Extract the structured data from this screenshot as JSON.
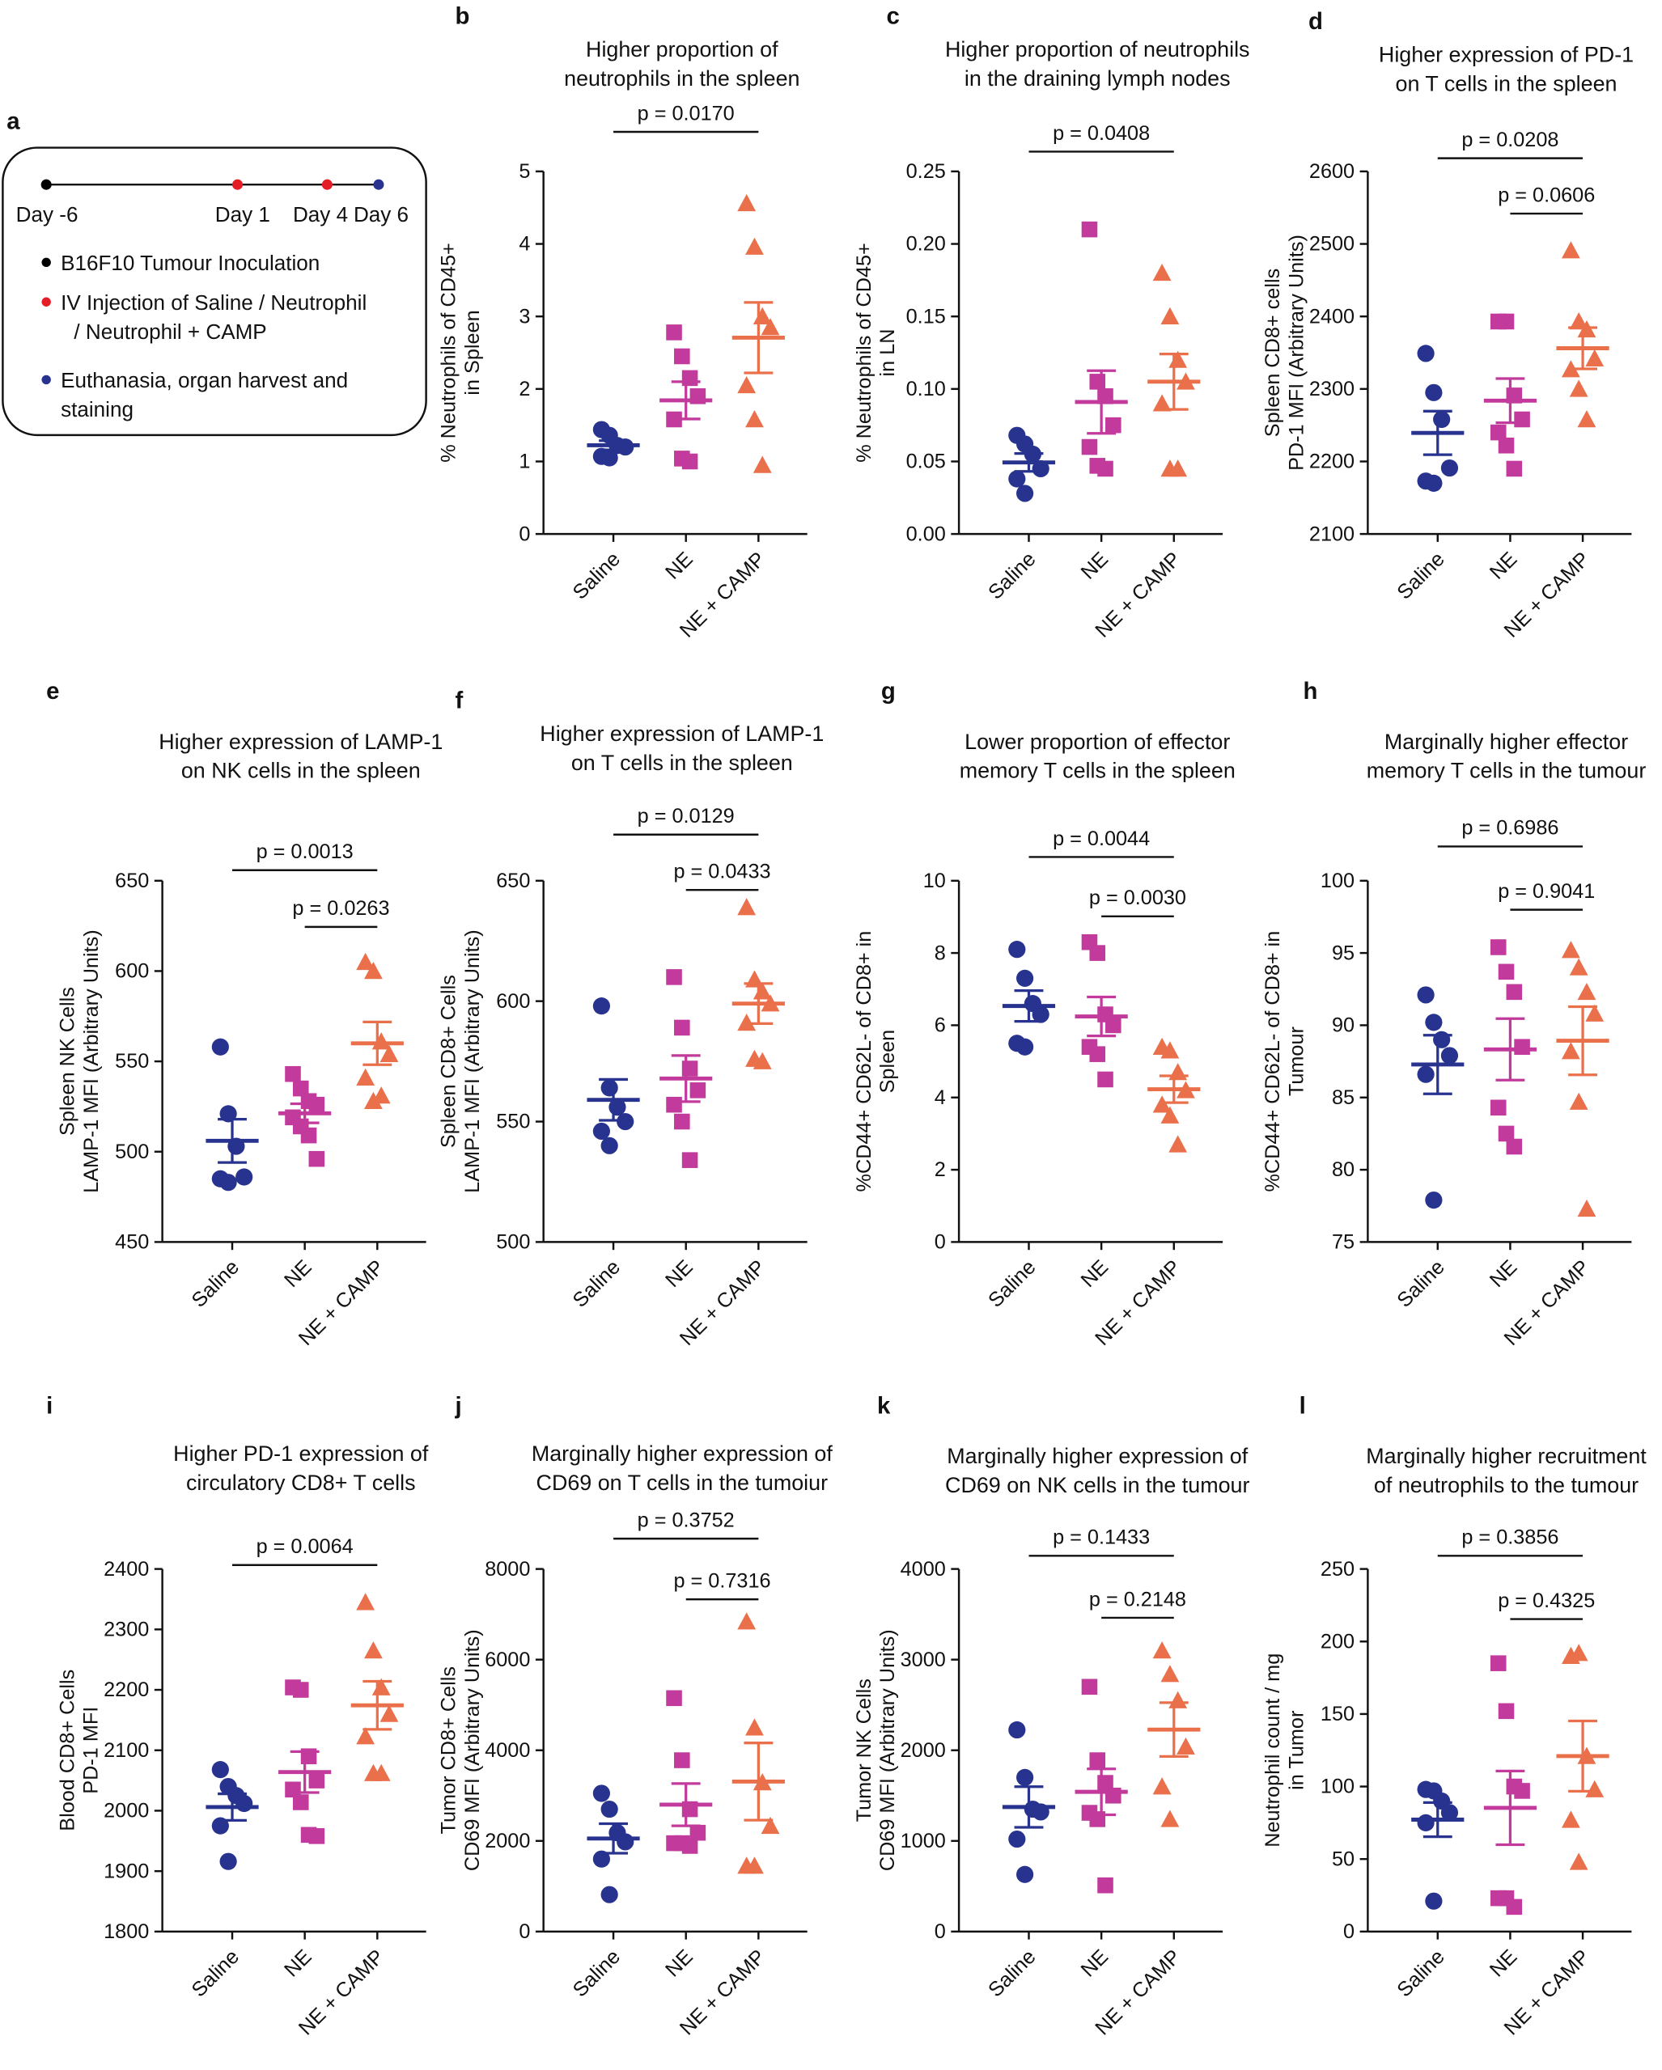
{
  "colors": {
    "Saline": "#27338f",
    "NE": "#c13a9c",
    "NE + CAMP": "#ea704b"
  },
  "panel_a": {
    "letter": "a",
    "days": [
      "Day -6",
      "Day 1",
      "Day 4",
      "Day 6"
    ],
    "legend": [
      {
        "color": "#000000",
        "lines": [
          "B16F10 Tumour Inoculation"
        ]
      },
      {
        "color": "#e41e26",
        "lines": [
          "IV Injection of Saline / Neutrophil",
          "/ Neutrophil + CAMP"
        ]
      },
      {
        "color": "#27338f",
        "lines": [
          "Euthanasia, organ harvest and",
          "staining"
        ]
      }
    ]
  },
  "chart_data": [
    {
      "letter": "b",
      "type": "scatter",
      "title": [
        "Higher proportion of",
        "neutrophils in the spleen"
      ],
      "ylabel": [
        "% Neutrophils of CD45+",
        "in Spleen"
      ],
      "ylim": [
        0,
        5
      ],
      "yticks": [
        "0",
        "1",
        "2",
        "3",
        "4",
        "5"
      ],
      "categories": [
        "Saline",
        "NE",
        "NE + CAMP"
      ],
      "series": [
        {
          "name": "Saline",
          "marker": "circle",
          "values": [
            1.44,
            1.36,
            1.22,
            1.2,
            1.07,
            1.05
          ]
        },
        {
          "name": "NE",
          "marker": "square",
          "values": [
            2.78,
            2.45,
            2.15,
            1.9,
            1.58,
            1.04,
            1.0
          ]
        },
        {
          "name": "NE + CAMP",
          "marker": "triangle",
          "values": [
            4.56,
            3.96,
            3.0,
            2.85,
            2.05,
            1.58,
            0.95
          ]
        }
      ],
      "pvalues": [
        {
          "text": "p = 0.0170",
          "from": "Saline",
          "to": "NE + CAMP"
        }
      ]
    },
    {
      "letter": "c",
      "type": "scatter",
      "title": [
        "Higher proportion of neutrophils",
        "in the draining lymph nodes"
      ],
      "ylabel": [
        "% Neutrophils of CD45+",
        "in LN"
      ],
      "ylim": [
        0,
        0.25
      ],
      "yticks": [
        "0.00",
        "0.05",
        "0.10",
        "0.15",
        "0.20",
        "0.25"
      ],
      "categories": [
        "Saline",
        "NE",
        "NE + CAMP"
      ],
      "series": [
        {
          "name": "Saline",
          "marker": "circle",
          "values": [
            0.068,
            0.062,
            0.055,
            0.045,
            0.038,
            0.028
          ]
        },
        {
          "name": "NE",
          "marker": "square",
          "values": [
            0.21,
            0.105,
            0.095,
            0.075,
            0.06,
            0.047,
            0.045
          ]
        },
        {
          "name": "NE + CAMP",
          "marker": "triangle",
          "values": [
            0.18,
            0.15,
            0.12,
            0.105,
            0.09,
            0.045,
            0.045
          ]
        }
      ],
      "pvalues": [
        {
          "text": "p = 0.0408",
          "from": "Saline",
          "to": "NE + CAMP"
        }
      ]
    },
    {
      "letter": "d",
      "type": "scatter",
      "title": [
        "Higher expression of PD-1",
        "on T cells in the spleen"
      ],
      "ylabel": [
        "Spleen CD8+ cells",
        "PD-1 MFI (Arbitrary Units)"
      ],
      "ylim": [
        2100,
        2600
      ],
      "yticks": [
        "2100",
        "2200",
        "2300",
        "2400",
        "2500",
        "2600"
      ],
      "categories": [
        "Saline",
        "NE",
        "NE + CAMP"
      ],
      "series": [
        {
          "name": "Saline",
          "marker": "circle",
          "values": [
            2349,
            2295,
            2258,
            2191,
            2173,
            2170
          ]
        },
        {
          "name": "NE",
          "marker": "square",
          "values": [
            2393,
            2393,
            2291,
            2258,
            2240,
            2222,
            2190
          ]
        },
        {
          "name": "NE + CAMP",
          "marker": "triangle",
          "values": [
            2491,
            2393,
            2382,
            2342,
            2327,
            2300,
            2258
          ]
        }
      ],
      "pvalues": [
        {
          "text": "p = 0.0208",
          "from": "Saline",
          "to": "NE + CAMP"
        },
        {
          "text": "p = 0.0606",
          "from": "NE",
          "to": "NE + CAMP"
        }
      ]
    },
    {
      "letter": "e",
      "type": "scatter",
      "title": [
        "Higher expression of LAMP-1",
        "on NK cells in the spleen"
      ],
      "ylabel": [
        "Spleen NK Cells",
        "LAMP-1 MFI (Arbitrary Units)"
      ],
      "ylim": [
        450,
        650
      ],
      "yticks": [
        "450",
        "500",
        "550",
        "600",
        "650"
      ],
      "categories": [
        "Saline",
        "NE",
        "NE + CAMP"
      ],
      "series": [
        {
          "name": "Saline",
          "marker": "circle",
          "values": [
            558,
            521,
            503,
            486,
            485,
            483
          ]
        },
        {
          "name": "NE",
          "marker": "square",
          "values": [
            543,
            535,
            528,
            526,
            519,
            514,
            509,
            496
          ]
        },
        {
          "name": "NE + CAMP",
          "marker": "triangle",
          "values": [
            605,
            600,
            561,
            554,
            541,
            528,
            531
          ]
        }
      ],
      "pvalues": [
        {
          "text": "p = 0.0013",
          "from": "Saline",
          "to": "NE + CAMP"
        },
        {
          "text": "p = 0.0263",
          "from": "NE",
          "to": "NE + CAMP"
        }
      ]
    },
    {
      "letter": "f",
      "type": "scatter",
      "title": [
        "Higher expression of LAMP-1",
        "on T cells in the spleen"
      ],
      "ylabel": [
        "Spleen CD8+ Cells",
        "LAMP-1 MFI (Arbitrary Units)"
      ],
      "ylim": [
        500,
        650
      ],
      "yticks": [
        "500",
        "550",
        "600",
        "650"
      ],
      "categories": [
        "Saline",
        "NE",
        "NE + CAMP"
      ],
      "series": [
        {
          "name": "Saline",
          "marker": "circle",
          "values": [
            598,
            564,
            556,
            550,
            546,
            540
          ]
        },
        {
          "name": "NE",
          "marker": "square",
          "values": [
            610,
            589,
            572,
            563,
            557,
            550,
            534
          ]
        },
        {
          "name": "NE + CAMP",
          "marker": "triangle",
          "values": [
            639,
            609,
            604,
            599,
            591,
            576,
            575
          ]
        }
      ],
      "pvalues": [
        {
          "text": "p = 0.0129",
          "from": "Saline",
          "to": "NE + CAMP"
        },
        {
          "text": "p = 0.0433",
          "from": "NE",
          "to": "NE + CAMP"
        }
      ]
    },
    {
      "letter": "g",
      "type": "scatter",
      "title": [
        "Lower proportion of effector",
        "memory T cells in the spleen"
      ],
      "ylabel": [
        "%CD44+ CD62L- of CD8+ in",
        "Spleen"
      ],
      "ylim": [
        0,
        10
      ],
      "yticks": [
        "0",
        "2",
        "4",
        "6",
        "8",
        "10"
      ],
      "categories": [
        "Saline",
        "NE",
        "NE + CAMP"
      ],
      "series": [
        {
          "name": "Saline",
          "marker": "circle",
          "values": [
            8.1,
            7.3,
            6.6,
            6.3,
            5.5,
            5.4
          ]
        },
        {
          "name": "NE",
          "marker": "square",
          "values": [
            8.3,
            8.0,
            6.3,
            6.0,
            5.4,
            5.2,
            4.5
          ]
        },
        {
          "name": "NE + CAMP",
          "marker": "triangle",
          "values": [
            5.4,
            5.3,
            4.7,
            4.2,
            3.8,
            3.5,
            2.7
          ]
        }
      ],
      "pvalues": [
        {
          "text": "p = 0.0044",
          "from": "Saline",
          "to": "NE + CAMP"
        },
        {
          "text": "p = 0.0030",
          "from": "NE",
          "to": "NE + CAMP"
        }
      ]
    },
    {
      "letter": "h",
      "type": "scatter",
      "title": [
        "Marginally higher effector",
        "memory T cells in the tumour"
      ],
      "ylabel": [
        "%CD44+ CD62L- of CD8+ in",
        "Tumour"
      ],
      "ylim": [
        75,
        100
      ],
      "yticks": [
        "75",
        "80",
        "85",
        "90",
        "95",
        "100"
      ],
      "categories": [
        "Saline",
        "NE",
        "NE + CAMP"
      ],
      "series": [
        {
          "name": "Saline",
          "marker": "circle",
          "values": [
            92.1,
            90.2,
            89.0,
            87.9,
            86.6,
            77.9
          ]
        },
        {
          "name": "NE",
          "marker": "square",
          "values": [
            95.4,
            93.7,
            92.3,
            88.5,
            84.3,
            82.5,
            81.6
          ]
        },
        {
          "name": "NE + CAMP",
          "marker": "triangle",
          "values": [
            95.2,
            94.0,
            92.3,
            90.8,
            88.2,
            84.7,
            77.3
          ]
        }
      ],
      "pvalues": [
        {
          "text": "p = 0.6986",
          "from": "Saline",
          "to": "NE + CAMP"
        },
        {
          "text": "p = 0.9041",
          "from": "NE",
          "to": "NE + CAMP"
        }
      ]
    },
    {
      "letter": "i",
      "type": "scatter",
      "title": [
        "Higher PD-1 expression of",
        "circulatory CD8+ T cells"
      ],
      "ylabel": [
        "Blood CD8+ Cells",
        "PD-1 MFI"
      ],
      "ylim": [
        1800,
        2400
      ],
      "yticks": [
        "1800",
        "1900",
        "2000",
        "2100",
        "2200",
        "2300",
        "2400"
      ],
      "categories": [
        "Saline",
        "NE",
        "NE + CAMP"
      ],
      "series": [
        {
          "name": "Saline",
          "marker": "circle",
          "values": [
            2068,
            2040,
            2025,
            2012,
            1975,
            1916
          ]
        },
        {
          "name": "NE",
          "marker": "square",
          "values": [
            2204,
            2200,
            2090,
            2050,
            2035,
            2014,
            1960,
            1958
          ]
        },
        {
          "name": "NE + CAMP",
          "marker": "triangle",
          "values": [
            2345,
            2265,
            2204,
            2160,
            2123,
            2062,
            2062
          ]
        }
      ],
      "pvalues": [
        {
          "text": "p = 0.0064",
          "from": "Saline",
          "to": "NE + CAMP"
        }
      ]
    },
    {
      "letter": "j",
      "type": "scatter",
      "title": [
        "Marginally higher expression of",
        "CD69 on T cells in the tumoiur"
      ],
      "ylabel": [
        "Tumor CD8+ Cells",
        "CD69 MFI (Arbitrary Units)"
      ],
      "ylim": [
        0,
        8000
      ],
      "yticks": [
        "0",
        "2000",
        "4000",
        "6000",
        "8000"
      ],
      "categories": [
        "Saline",
        "NE",
        "NE + CAMP"
      ],
      "series": [
        {
          "name": "Saline",
          "marker": "circle",
          "values": [
            3050,
            2700,
            2180,
            1980,
            1600,
            815
          ]
        },
        {
          "name": "NE",
          "marker": "square",
          "values": [
            5150,
            3780,
            2700,
            2180,
            1950,
            1950,
            1890
          ]
        },
        {
          "name": "NE + CAMP",
          "marker": "triangle",
          "values": [
            6840,
            4500,
            3290,
            2330,
            1450,
            1450
          ]
        }
      ],
      "pvalues": [
        {
          "text": "p = 0.3752",
          "from": "Saline",
          "to": "NE + CAMP"
        },
        {
          "text": "p = 0.7316",
          "from": "NE",
          "to": "NE + CAMP"
        }
      ]
    },
    {
      "letter": "k",
      "type": "scatter",
      "title": [
        "Marginally higher expression of",
        "CD69 on NK cells in the tumour"
      ],
      "ylabel": [
        "Tumor NK Cells",
        "CD69 MFI (Arbitrary Units)"
      ],
      "ylim": [
        0,
        4000
      ],
      "yticks": [
        "0",
        "1000",
        "2000",
        "3000",
        "4000"
      ],
      "categories": [
        "Saline",
        "NE",
        "NE + CAMP"
      ],
      "series": [
        {
          "name": "Saline",
          "marker": "circle",
          "values": [
            2225,
            1700,
            1350,
            1320,
            1020,
            630
          ]
        },
        {
          "name": "NE",
          "marker": "square",
          "values": [
            2700,
            1890,
            1640,
            1500,
            1310,
            1240,
            510
          ]
        },
        {
          "name": "NE + CAMP",
          "marker": "triangle",
          "values": [
            3100,
            2840,
            2550,
            2040,
            1600,
            1240
          ]
        }
      ],
      "pvalues": [
        {
          "text": "p = 0.1433",
          "from": "Saline",
          "to": "NE + CAMP"
        },
        {
          "text": "p = 0.2148",
          "from": "NE",
          "to": "NE + CAMP"
        }
      ]
    },
    {
      "letter": "l",
      "type": "scatter",
      "title": [
        "Marginally higher recruitment",
        "of neutrophils to the tumour"
      ],
      "ylabel": [
        "Neutrophil count / mg",
        "in Tumor"
      ],
      "ylim": [
        0,
        250
      ],
      "yticks": [
        "0",
        "50",
        "100",
        "150",
        "200",
        "250"
      ],
      "categories": [
        "Saline",
        "NE",
        "NE + CAMP"
      ],
      "series": [
        {
          "name": "Saline",
          "marker": "circle",
          "values": [
            98,
            97,
            90,
            82,
            75,
            21
          ]
        },
        {
          "name": "NE",
          "marker": "square",
          "values": [
            185,
            152,
            100,
            97,
            23,
            23,
            17
          ]
        },
        {
          "name": "NE + CAMP",
          "marker": "triangle",
          "values": [
            190,
            192,
            121,
            98,
            77,
            48
          ]
        }
      ],
      "pvalues": [
        {
          "text": "p = 0.3856",
          "from": "Saline",
          "to": "NE + CAMP"
        },
        {
          "text": "p = 0.4325",
          "from": "NE",
          "to": "NE + CAMP"
        }
      ]
    }
  ]
}
